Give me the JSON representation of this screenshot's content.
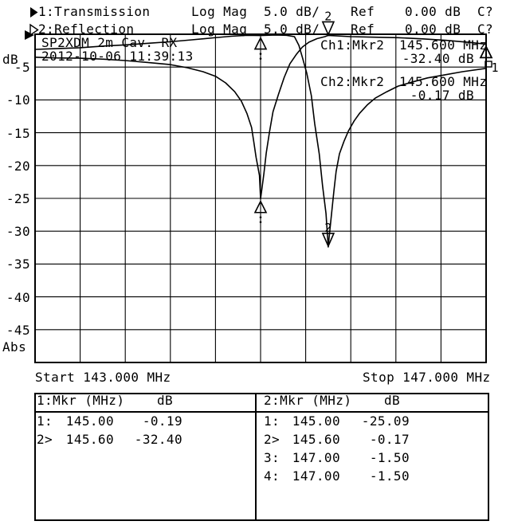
{
  "header": {
    "rows": [
      {
        "trace_label": "1:Transmission",
        "format": "Log Mag",
        "scale": "5.0 dB/",
        "ref_label": "Ref",
        "ref_value": "0.00 dB",
        "cal_status": "C?"
      },
      {
        "trace_label": "2:Reflection",
        "format": "Log Mag",
        "scale": "5.0 dB/",
        "ref_label": "Ref",
        "ref_value": "0.00 dB",
        "cal_status": "C?"
      }
    ]
  },
  "plot": {
    "y_axis_label": "dB",
    "y_bottom_label": "Abs",
    "y_ticks": [
      "-5",
      "-10",
      "-15",
      "-20",
      "-25",
      "-30",
      "-35",
      "-40",
      "-45"
    ],
    "title": "SP2XDM 2m Cav. RX",
    "datetime": "2012-10-06 11:39:13",
    "annotations": [
      {
        "label": "Ch1:Mkr2",
        "freq": "145.600 MHz",
        "value": "-32.40 dB"
      },
      {
        "label": "Ch2:Mkr2",
        "freq": "145.600 MHz",
        "value": "-0.17 dB"
      }
    ],
    "start_label": "Start 143.000 MHz",
    "stop_label": "Stop 147.000 MHz"
  },
  "marker_table": {
    "channels": [
      {
        "header": "1:Mkr (MHz)",
        "header_db": "dB",
        "rows": [
          [
            "1:",
            "145.00",
            "-0.19"
          ],
          [
            "2>",
            "145.60",
            "-32.40"
          ]
        ]
      },
      {
        "header": "2:Mkr (MHz)",
        "header_db": "dB",
        "rows": [
          [
            "1:",
            "145.00",
            "-25.09"
          ],
          [
            "2>",
            "145.60",
            "-0.17"
          ],
          [
            "3:",
            "147.00",
            "-1.50"
          ],
          [
            "4:",
            "147.00",
            "-1.50"
          ]
        ]
      }
    ]
  },
  "chart_data": {
    "type": "line",
    "title": "SP2XDM 2m Cav. RX",
    "x_range": [
      143.0,
      147.0
    ],
    "y_range": [
      -50,
      0
    ],
    "x_units": "MHz",
    "y_units": "dB",
    "scale_per_div_db": 5.0,
    "ref_level_db": 0.0,
    "grid": "on",
    "series": [
      {
        "name": "Transmission",
        "points": [
          [
            143.0,
            -2.3
          ],
          [
            143.18,
            -2.2
          ],
          [
            143.4,
            -2.05
          ],
          [
            143.61,
            -1.8
          ],
          [
            143.82,
            -1.6
          ],
          [
            144.03,
            -1.35
          ],
          [
            144.19,
            -1.15
          ],
          [
            144.39,
            -0.85
          ],
          [
            144.58,
            -0.55
          ],
          [
            144.74,
            -0.3
          ],
          [
            144.88,
            -0.16
          ],
          [
            145.0,
            -0.19
          ],
          [
            145.13,
            -0.12
          ],
          [
            145.23,
            -0.16
          ],
          [
            145.3,
            -0.36
          ],
          [
            145.34,
            -1.7
          ],
          [
            145.37,
            -3.5
          ],
          [
            145.41,
            -5.95
          ],
          [
            145.45,
            -9.35
          ],
          [
            145.48,
            -13.6
          ],
          [
            145.52,
            -18.2
          ],
          [
            145.55,
            -23.1
          ],
          [
            145.58,
            -27.3
          ],
          [
            145.6,
            -32.4
          ],
          [
            145.61,
            -30.6
          ],
          [
            145.63,
            -27.3
          ],
          [
            145.65,
            -23.9
          ],
          [
            145.67,
            -20.9
          ],
          [
            145.7,
            -18.2
          ],
          [
            145.74,
            -16.3
          ],
          [
            145.78,
            -14.7
          ],
          [
            145.83,
            -13.2
          ],
          [
            145.88,
            -12.0
          ],
          [
            145.95,
            -10.7
          ],
          [
            146.02,
            -9.7
          ],
          [
            146.12,
            -8.75
          ],
          [
            146.22,
            -7.9
          ],
          [
            146.34,
            -7.3
          ],
          [
            146.48,
            -6.65
          ],
          [
            146.63,
            -6.2
          ],
          [
            146.79,
            -5.7
          ],
          [
            147.0,
            -5.2
          ]
        ]
      },
      {
        "name": "Reflection",
        "points": [
          [
            143.0,
            -3.5
          ],
          [
            143.18,
            -3.6
          ],
          [
            143.4,
            -3.65
          ],
          [
            143.61,
            -3.8
          ],
          [
            143.8,
            -4.0
          ],
          [
            144.0,
            -4.3
          ],
          [
            144.19,
            -4.6
          ],
          [
            144.35,
            -5.1
          ],
          [
            144.49,
            -5.7
          ],
          [
            144.6,
            -6.4
          ],
          [
            144.69,
            -7.4
          ],
          [
            144.77,
            -8.75
          ],
          [
            144.83,
            -10.2
          ],
          [
            144.88,
            -12.1
          ],
          [
            144.92,
            -14.2
          ],
          [
            144.94,
            -16.4
          ],
          [
            144.96,
            -18.7
          ],
          [
            144.99,
            -21.5
          ],
          [
            145.0,
            -25.09
          ],
          [
            145.03,
            -21.2
          ],
          [
            145.05,
            -18.1
          ],
          [
            145.08,
            -14.8
          ],
          [
            145.11,
            -11.8
          ],
          [
            145.16,
            -9.1
          ],
          [
            145.21,
            -6.55
          ],
          [
            145.26,
            -4.5
          ],
          [
            145.32,
            -3.0
          ],
          [
            145.37,
            -1.95
          ],
          [
            145.43,
            -1.2
          ],
          [
            145.5,
            -0.67
          ],
          [
            145.57,
            -0.36
          ],
          [
            145.6,
            -0.17
          ],
          [
            145.8,
            -0.36
          ],
          [
            146.01,
            -0.45
          ],
          [
            146.22,
            -0.52
          ],
          [
            146.44,
            -0.7
          ],
          [
            146.65,
            -0.93
          ],
          [
            146.86,
            -1.25
          ],
          [
            147.0,
            -1.5
          ]
        ]
      }
    ],
    "markers": [
      {
        "trace": "Transmission",
        "marker": "1",
        "f": 145.0,
        "db": -0.19,
        "symbol": "triangle-up",
        "show_label": false
      },
      {
        "trace": "Transmission",
        "marker": "2",
        "f": 145.6,
        "db": -32.4,
        "symbol": "triangle-down",
        "show_label": true
      },
      {
        "trace": "Reflection",
        "marker": "1",
        "f": 145.0,
        "db": -25.09,
        "symbol": "triangle-up",
        "show_label": false
      },
      {
        "trace": "Reflection",
        "marker": "2",
        "f": 145.6,
        "db": -0.17,
        "symbol": "triangle-down",
        "show_label": true
      },
      {
        "trace": "Reflection",
        "marker": "3",
        "f": 147.0,
        "db": -1.5,
        "symbol": "triangle-up",
        "show_label": false
      },
      {
        "trace": "Reflection",
        "marker": "4",
        "f": 147.0,
        "db": -1.5,
        "symbol": "triangle-up",
        "show_label": false
      }
    ],
    "edge_indicator": {
      "label": "1",
      "f": 147.0,
      "db": -5.2
    }
  }
}
